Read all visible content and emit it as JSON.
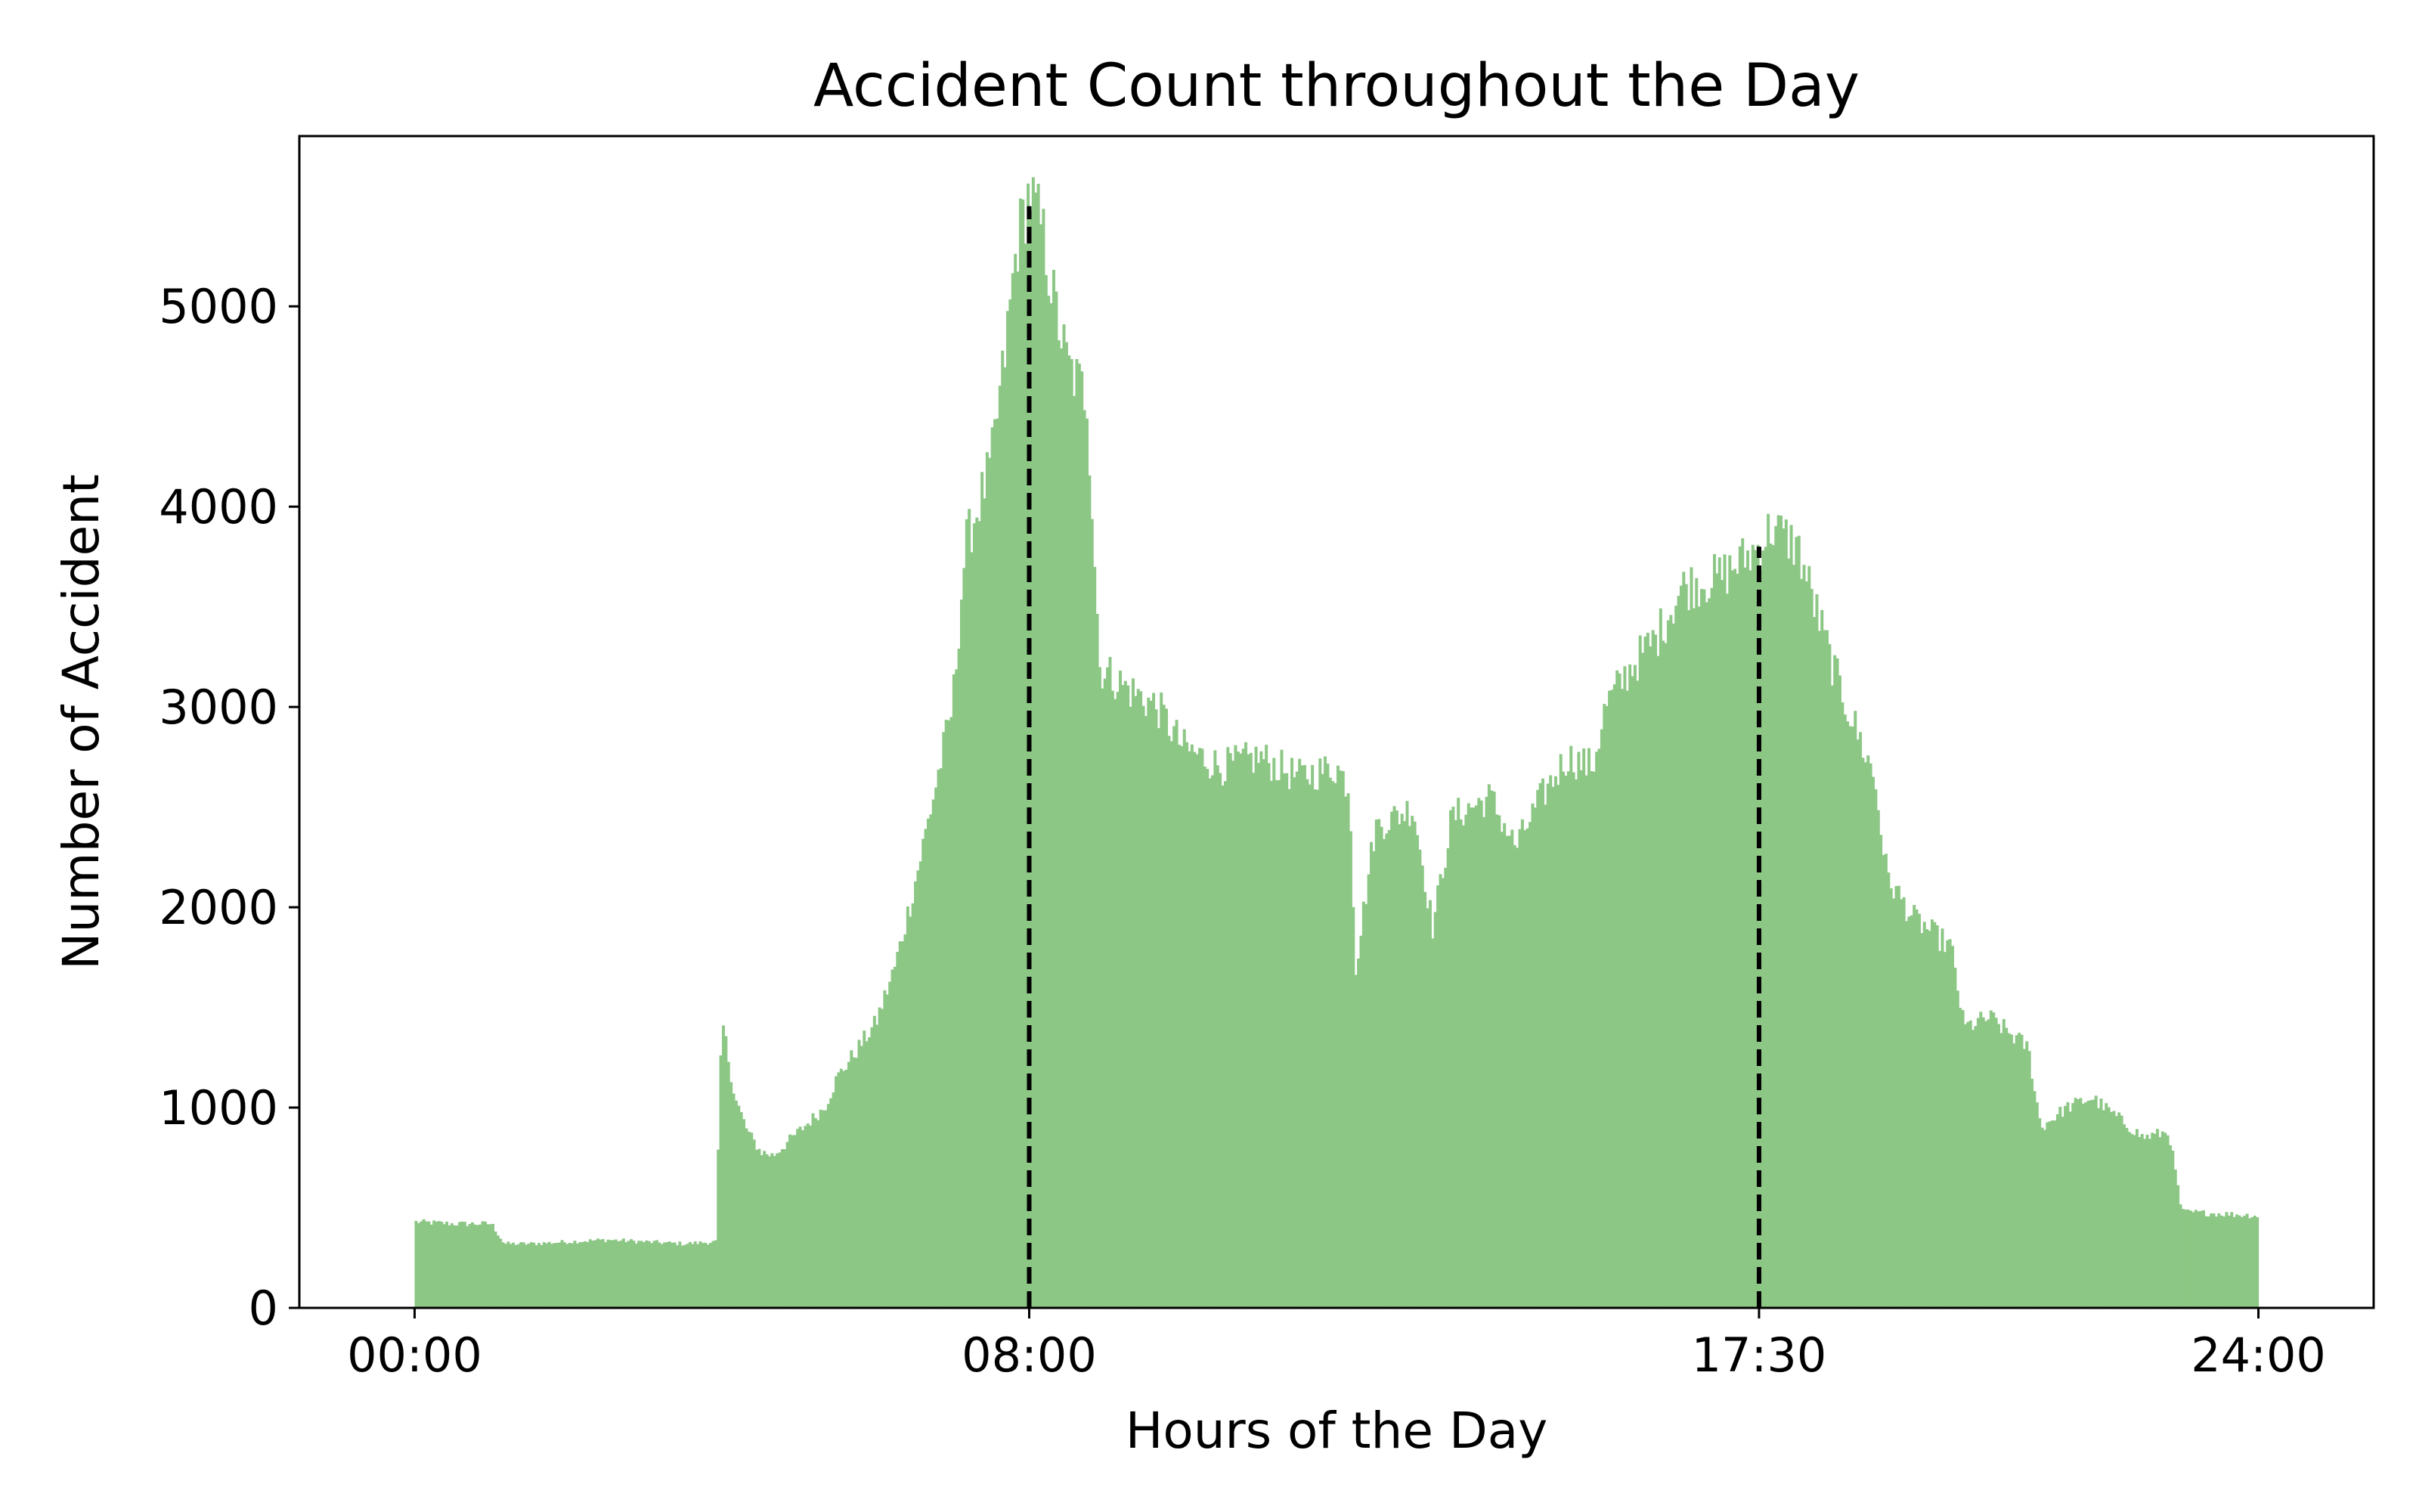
{
  "colors": {
    "background": "#ffffff",
    "bar_fill": "#8cc785",
    "marker_line": "#000000",
    "axis": "#000000"
  },
  "chart_data": {
    "type": "bar",
    "title": "Accident Count throughout the Day",
    "xlabel": "Hours of the Day",
    "ylabel": "Number of Accident",
    "bin_minutes": 2,
    "xlim": [
      "-01:30",
      "25:30"
    ],
    "ylim": [
      0,
      5850
    ],
    "grid": false,
    "legend": "none",
    "x_ticks": [
      {
        "label": "00:00",
        "hour": 0
      },
      {
        "label": "08:00",
        "hour": 8
      },
      {
        "label": "17:30",
        "hour": 17.5
      },
      {
        "label": "24:00",
        "hour": 24
      }
    ],
    "y_ticks": [
      0,
      1000,
      2000,
      3000,
      4000,
      5000
    ],
    "reference_lines": [
      {
        "time": "08:00",
        "hour": 8,
        "style": "dashed",
        "top_value": 5500
      },
      {
        "time": "17:30",
        "hour": 17.5,
        "style": "dashed",
        "top_value": 3800
      }
    ],
    "profile": [
      [
        "00:00",
        430
      ],
      [
        "00:30",
        420
      ],
      [
        "01:00",
        420
      ],
      [
        "01:10",
        320
      ],
      [
        "01:30",
        320
      ],
      [
        "02:00",
        330
      ],
      [
        "02:30",
        340
      ],
      [
        "03:00",
        330
      ],
      [
        "03:30",
        320
      ],
      [
        "03:55",
        330
      ],
      [
        "04:00",
        1440
      ],
      [
        "04:10",
        1050
      ],
      [
        "04:20",
        880
      ],
      [
        "04:30",
        780
      ],
      [
        "04:40",
        760
      ],
      [
        "05:00",
        880
      ],
      [
        "05:20",
        1000
      ],
      [
        "05:30",
        1150
      ],
      [
        "06:00",
        1420
      ],
      [
        "06:15",
        1700
      ],
      [
        "06:30",
        2100
      ],
      [
        "07:00",
        3000
      ],
      [
        "07:10",
        3800
      ],
      [
        "07:30",
        4200
      ],
      [
        "07:40",
        4700
      ],
      [
        "07:50",
        5300
      ],
      [
        "08:00",
        5580
      ],
      [
        "08:10",
        5380
      ],
      [
        "08:20",
        5000
      ],
      [
        "08:30",
        4700
      ],
      [
        "08:45",
        4550
      ],
      [
        "08:55",
        3200
      ],
      [
        "09:15",
        3100
      ],
      [
        "09:40",
        3000
      ],
      [
        "10:00",
        2800
      ],
      [
        "10:30",
        2700
      ],
      [
        "11:00",
        2750
      ],
      [
        "11:30",
        2650
      ],
      [
        "12:00",
        2700
      ],
      [
        "12:10",
        2600
      ],
      [
        "12:15",
        1700
      ],
      [
        "12:30",
        2400
      ],
      [
        "13:00",
        2500
      ],
      [
        "13:15",
        1900
      ],
      [
        "13:30",
        2450
      ],
      [
        "14:00",
        2550
      ],
      [
        "14:20",
        2300
      ],
      [
        "14:40",
        2550
      ],
      [
        "15:00",
        2750
      ],
      [
        "15:20",
        2700
      ],
      [
        "15:30",
        3000
      ],
      [
        "15:50",
        3200
      ],
      [
        "16:10",
        3350
      ],
      [
        "16:30",
        3600
      ],
      [
        "17:00",
        3650
      ],
      [
        "17:30",
        3800
      ],
      [
        "17:40",
        3900
      ],
      [
        "18:00",
        3800
      ],
      [
        "18:30",
        3150
      ],
      [
        "19:00",
        2650
      ],
      [
        "19:10",
        2150
      ],
      [
        "19:30",
        1950
      ],
      [
        "20:00",
        1800
      ],
      [
        "20:10",
        1400
      ],
      [
        "20:30",
        1450
      ],
      [
        "21:00",
        1300
      ],
      [
        "21:10",
        900
      ],
      [
        "21:30",
        1000
      ],
      [
        "21:50",
        1050
      ],
      [
        "22:10",
        950
      ],
      [
        "22:30",
        850
      ],
      [
        "22:50",
        880
      ],
      [
        "23:00",
        480
      ],
      [
        "23:30",
        470
      ],
      [
        "24:00",
        460
      ]
    ]
  }
}
